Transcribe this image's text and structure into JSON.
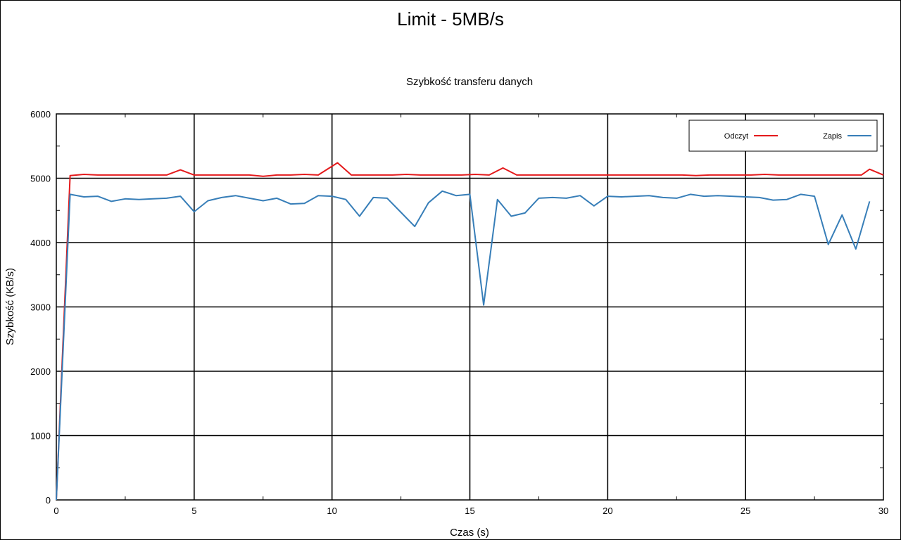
{
  "suptitle": "Limit - 5MB/s",
  "chart_data": {
    "type": "line",
    "title": "Szybkość transferu danych",
    "xlabel": "Czas (s)",
    "ylabel": "Szybkość (KB/s)",
    "xlim": [
      0,
      30
    ],
    "ylim": [
      0,
      6000
    ],
    "xticks": [
      0,
      5,
      10,
      15,
      20,
      25,
      30
    ],
    "yticks": [
      0,
      1000,
      2000,
      3000,
      4000,
      5000,
      6000
    ],
    "grid": true,
    "legend_position": "top-right",
    "series": [
      {
        "name": "Odczyt",
        "color": "#e41a1c",
        "x": [
          0,
          0.5,
          1,
          1.5,
          2,
          2.5,
          3,
          3.5,
          4,
          4.5,
          5,
          5.5,
          6,
          6.5,
          7,
          7.5,
          8,
          8.5,
          9,
          9.5,
          10.2,
          10.7,
          11.2,
          11.7,
          12.2,
          12.7,
          13.2,
          13.7,
          14.2,
          14.7,
          15.2,
          15.7,
          16.2,
          16.7,
          17.2,
          17.7,
          18.2,
          18.7,
          19.2,
          19.7,
          20.2,
          20.7,
          21.2,
          21.7,
          22.2,
          22.7,
          23.2,
          23.7,
          24.2,
          24.7,
          25.2,
          25.7,
          26.2,
          26.7,
          27.2,
          27.7,
          28.2,
          28.7,
          29.2,
          29.5,
          30
        ],
        "y": [
          0,
          5040,
          5060,
          5050,
          5050,
          5050,
          5050,
          5050,
          5050,
          5130,
          5050,
          5050,
          5050,
          5050,
          5050,
          5030,
          5050,
          5050,
          5060,
          5050,
          5240,
          5050,
          5050,
          5050,
          5050,
          5060,
          5050,
          5050,
          5050,
          5050,
          5060,
          5050,
          5160,
          5050,
          5050,
          5050,
          5050,
          5050,
          5050,
          5050,
          5050,
          5050,
          5050,
          5050,
          5050,
          5050,
          5040,
          5050,
          5050,
          5050,
          5050,
          5060,
          5050,
          5050,
          5050,
          5050,
          5050,
          5050,
          5050,
          5140,
          5050
        ]
      },
      {
        "name": "Zapis",
        "color": "#377eb8",
        "x": [
          0,
          0.5,
          1,
          1.5,
          2,
          2.5,
          3,
          3.5,
          4,
          4.5,
          5,
          5.5,
          6,
          6.5,
          7,
          7.5,
          8,
          8.5,
          9,
          9.5,
          10,
          10.5,
          11,
          11.5,
          12,
          12.5,
          13,
          13.5,
          14,
          14.5,
          15,
          15.5,
          16,
          16.5,
          17,
          17.5,
          18,
          18.5,
          19,
          19.5,
          20,
          20.5,
          21,
          21.5,
          22,
          22.5,
          23,
          23.5,
          24,
          24.5,
          25,
          25.5,
          26,
          26.5,
          27,
          27.5,
          28,
          28.5,
          29,
          29.5
        ],
        "y": [
          0,
          4750,
          4710,
          4720,
          4640,
          4680,
          4670,
          4680,
          4690,
          4720,
          4480,
          4650,
          4700,
          4730,
          4690,
          4650,
          4690,
          4600,
          4610,
          4730,
          4720,
          4670,
          4410,
          4700,
          4690,
          4470,
          4250,
          4620,
          4800,
          4730,
          4750,
          3030,
          4670,
          4410,
          4460,
          4690,
          4700,
          4690,
          4730,
          4570,
          4720,
          4710,
          4720,
          4730,
          4700,
          4690,
          4750,
          4720,
          4730,
          4720,
          4710,
          4700,
          4660,
          4670,
          4750,
          4720,
          3970,
          4430,
          3900,
          4640
        ]
      }
    ]
  }
}
